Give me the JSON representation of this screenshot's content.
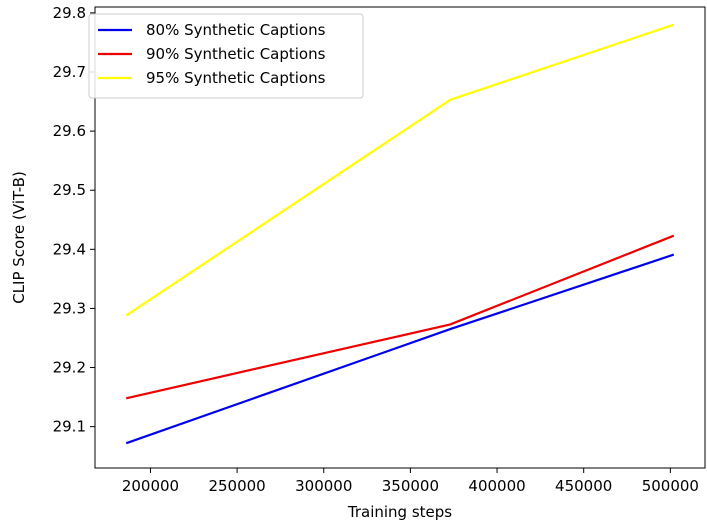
{
  "chart_data": {
    "type": "line",
    "title": "",
    "xlabel": "Training steps",
    "ylabel": "CLIP Score (ViT-B)",
    "xlim": [
      168000,
      520000
    ],
    "ylim": [
      29.03,
      29.81
    ],
    "x_ticks": [
      200000,
      250000,
      300000,
      350000,
      400000,
      450000,
      500000
    ],
    "x_tick_labels": [
      "200000",
      "250000",
      "300000",
      "350000",
      "400000",
      "450000",
      "500000"
    ],
    "y_ticks": [
      29.1,
      29.2,
      29.3,
      29.4,
      29.5,
      29.6,
      29.7,
      29.8
    ],
    "y_tick_labels": [
      "29.1",
      "29.2",
      "29.3",
      "29.4",
      "29.5",
      "29.6",
      "29.7",
      "29.8"
    ],
    "grid": false,
    "legend_position": "top-left",
    "x": [
      186000,
      373000,
      502000
    ],
    "series": [
      {
        "name": "80% Synthetic Captions",
        "color": "#0000ee",
        "values": [
          29.072,
          29.265,
          29.391
        ]
      },
      {
        "name": "90% Synthetic Captions",
        "color": "#ee0000",
        "values": [
          29.148,
          29.273,
          29.423
        ]
      },
      {
        "name": "95% Synthetic Captions",
        "color": "#ffff00",
        "values": [
          29.288,
          29.653,
          29.78
        ]
      }
    ]
  }
}
